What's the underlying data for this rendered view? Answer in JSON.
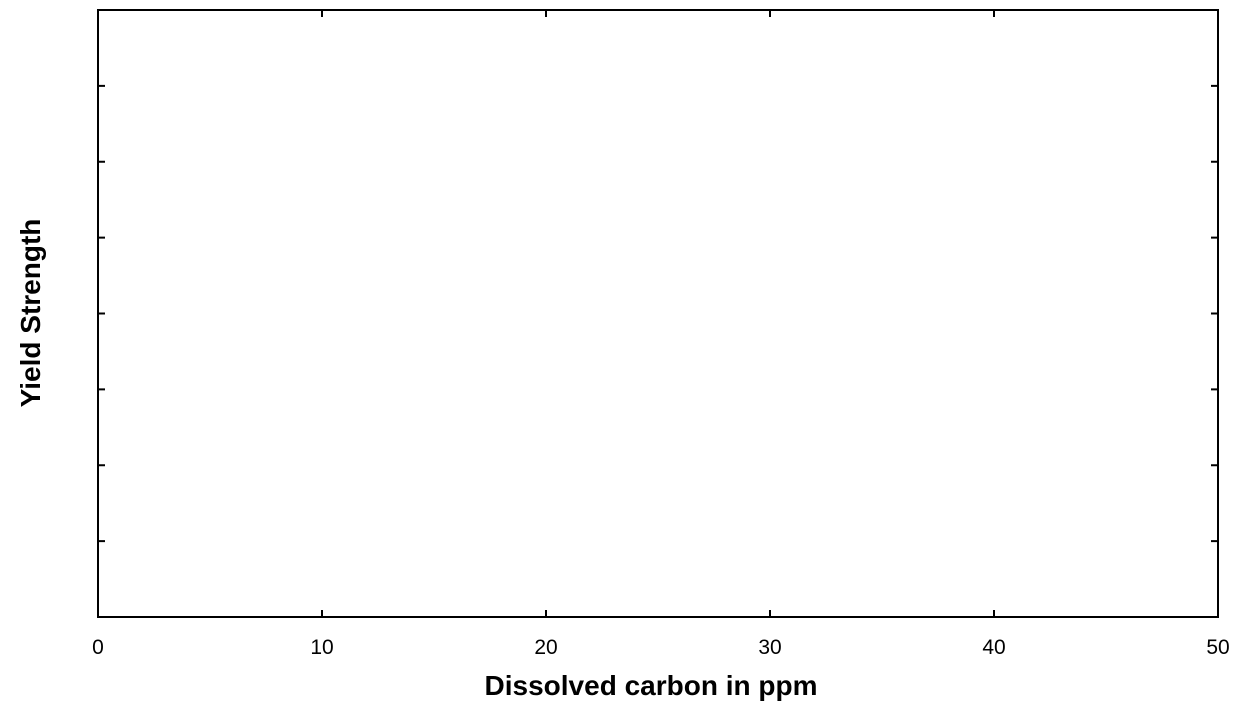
{
  "chart_data": {
    "type": "line",
    "title": "",
    "xlabel": "Dissolved carbon in ppm",
    "ylabel": "Yield Strength",
    "xlim": [
      0,
      50
    ],
    "x_ticks": [
      "0",
      "10",
      "20",
      "30",
      "40",
      "50"
    ],
    "y_tick_count": 9,
    "y_tick_labels_shown": false,
    "grid": false,
    "legend": "none",
    "series": []
  },
  "colors": {
    "axis": "#000000",
    "background": "#ffffff"
  }
}
